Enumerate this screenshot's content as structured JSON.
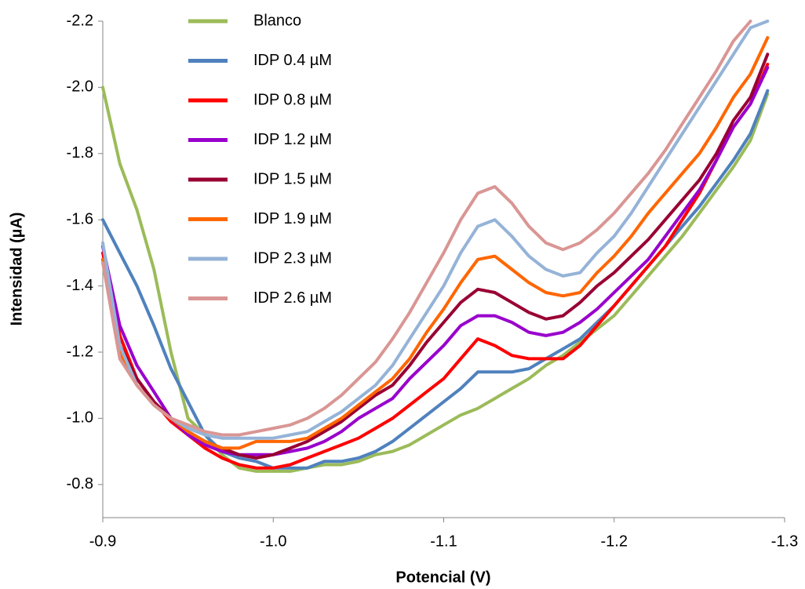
{
  "chart_data": {
    "type": "line",
    "x_label": "Potencial (V)",
    "y_label": "Intensidad (µA)",
    "x": [
      -0.9,
      -0.91,
      -0.92,
      -0.93,
      -0.94,
      -0.95,
      -0.96,
      -0.97,
      -0.98,
      -0.99,
      -1.0,
      -1.01,
      -1.02,
      -1.03,
      -1.04,
      -1.05,
      -1.06,
      -1.07,
      -1.08,
      -1.09,
      -1.1,
      -1.11,
      -1.12,
      -1.13,
      -1.14,
      -1.15,
      -1.16,
      -1.17,
      -1.18,
      -1.19,
      -1.2,
      -1.21,
      -1.22,
      -1.23,
      -1.24,
      -1.25,
      -1.26,
      -1.27,
      -1.28,
      -1.29
    ],
    "xlim": [
      -0.9,
      -1.3
    ],
    "xticks": [
      -0.9,
      {
        "value": -1.0,
        "label": "-1.0"
      },
      -1.1,
      -1.2,
      -1.3
    ],
    "ylim": [
      -0.7,
      -2.2
    ],
    "yticks": [
      -0.8,
      {
        "value": -1.0,
        "label": "-1.0"
      },
      -1.2,
      -1.4,
      -1.6,
      -1.8,
      {
        "value": -2.0,
        "label": "-2.0"
      },
      -2.2
    ],
    "grid": false,
    "legend": "top-left",
    "series": [
      {
        "name": "Blanco",
        "color": "#9bbb59",
        "values": [
          -2.0,
          -1.77,
          -1.63,
          -1.45,
          -1.2,
          -1.0,
          -0.95,
          -0.89,
          -0.85,
          -0.84,
          -0.84,
          -0.84,
          -0.85,
          -0.86,
          -0.86,
          -0.87,
          -0.89,
          -0.9,
          -0.92,
          -0.95,
          -0.98,
          -1.01,
          -1.03,
          -1.06,
          -1.09,
          -1.12,
          -1.16,
          -1.19,
          -1.23,
          -1.27,
          -1.31,
          -1.37,
          -1.43,
          -1.49,
          -1.55,
          -1.62,
          -1.69,
          -1.76,
          -1.84,
          -1.98
        ]
      },
      {
        "name": "IDP 0.4 µM",
        "color": "#4f81bd",
        "values": [
          -1.6,
          -1.5,
          -1.4,
          -1.28,
          -1.15,
          -1.05,
          -0.95,
          -0.9,
          -0.88,
          -0.87,
          -0.85,
          -0.85,
          -0.85,
          -0.87,
          -0.87,
          -0.88,
          -0.9,
          -0.93,
          -0.97,
          -1.01,
          -1.05,
          -1.09,
          -1.14,
          -1.14,
          -1.14,
          -1.15,
          -1.18,
          -1.21,
          -1.24,
          -1.29,
          -1.34,
          -1.4,
          -1.46,
          -1.52,
          -1.58,
          -1.64,
          -1.71,
          -1.78,
          -1.86,
          -1.99
        ]
      },
      {
        "name": "IDP 0.8 µM",
        "color": "#ff0000",
        "values": [
          -1.5,
          -1.25,
          -1.12,
          -1.05,
          -0.99,
          -0.95,
          -0.91,
          -0.88,
          -0.86,
          -0.85,
          -0.85,
          -0.86,
          -0.88,
          -0.9,
          -0.92,
          -0.94,
          -0.97,
          -1.0,
          -1.04,
          -1.08,
          -1.12,
          -1.18,
          -1.24,
          -1.22,
          -1.19,
          -1.18,
          -1.18,
          -1.18,
          -1.22,
          -1.28,
          -1.34,
          -1.4,
          -1.46,
          -1.52,
          -1.6,
          -1.68,
          -1.78,
          -1.88,
          -1.95,
          -2.07
        ]
      },
      {
        "name": "IDP 1.2 µM",
        "color": "#9900cc",
        "values": [
          -1.52,
          -1.28,
          -1.16,
          -1.08,
          -1.0,
          -0.95,
          -0.92,
          -0.9,
          -0.89,
          -0.89,
          -0.89,
          -0.9,
          -0.91,
          -0.93,
          -0.96,
          -1.0,
          -1.03,
          -1.06,
          -1.12,
          -1.17,
          -1.22,
          -1.28,
          -1.31,
          -1.31,
          -1.29,
          -1.26,
          -1.25,
          -1.26,
          -1.29,
          -1.33,
          -1.38,
          -1.43,
          -1.48,
          -1.55,
          -1.62,
          -1.69,
          -1.78,
          -1.88,
          -1.95,
          -2.06
        ]
      },
      {
        "name": "IDP 1.5 µM",
        "color": "#990033",
        "values": [
          -1.48,
          -1.22,
          -1.12,
          -1.05,
          -1.0,
          -0.96,
          -0.93,
          -0.91,
          -0.89,
          -0.88,
          -0.89,
          -0.91,
          -0.93,
          -0.96,
          -0.99,
          -1.03,
          -1.07,
          -1.1,
          -1.16,
          -1.23,
          -1.29,
          -1.35,
          -1.39,
          -1.38,
          -1.35,
          -1.32,
          -1.3,
          -1.31,
          -1.35,
          -1.4,
          -1.44,
          -1.49,
          -1.54,
          -1.6,
          -1.66,
          -1.72,
          -1.8,
          -1.9,
          -1.97,
          -2.1
        ]
      },
      {
        "name": "IDP 1.9 µM",
        "color": "#ff6600",
        "values": [
          -1.48,
          -1.2,
          -1.1,
          -1.04,
          -1.0,
          -0.96,
          -0.93,
          -0.91,
          -0.91,
          -0.93,
          -0.93,
          -0.93,
          -0.94,
          -0.97,
          -1.0,
          -1.04,
          -1.08,
          -1.12,
          -1.18,
          -1.26,
          -1.33,
          -1.41,
          -1.48,
          -1.49,
          -1.45,
          -1.41,
          -1.38,
          -1.37,
          -1.38,
          -1.44,
          -1.49,
          -1.55,
          -1.62,
          -1.68,
          -1.74,
          -1.8,
          -1.88,
          -1.97,
          -2.04,
          -2.15
        ]
      },
      {
        "name": "IDP 2.3 µM",
        "color": "#95b3d7",
        "values": [
          -1.53,
          -1.22,
          -1.1,
          -1.04,
          -1.0,
          -0.97,
          -0.95,
          -0.94,
          -0.94,
          -0.94,
          -0.94,
          -0.95,
          -0.96,
          -0.99,
          -1.02,
          -1.06,
          -1.1,
          -1.16,
          -1.24,
          -1.32,
          -1.4,
          -1.5,
          -1.58,
          -1.6,
          -1.55,
          -1.49,
          -1.45,
          -1.43,
          -1.44,
          -1.5,
          -1.55,
          -1.62,
          -1.7,
          -1.78,
          -1.86,
          -1.94,
          -2.02,
          -2.1,
          -2.18,
          -2.2
        ]
      },
      {
        "name": "IDP 2.6 µM",
        "color": "#d99694",
        "values": [
          -1.47,
          -1.18,
          -1.1,
          -1.04,
          -1.0,
          -0.98,
          -0.96,
          -0.95,
          -0.95,
          -0.96,
          -0.97,
          -0.98,
          -1.0,
          -1.03,
          -1.07,
          -1.12,
          -1.17,
          -1.24,
          -1.32,
          -1.41,
          -1.5,
          -1.6,
          -1.68,
          -1.7,
          -1.65,
          -1.58,
          -1.53,
          -1.51,
          -1.53,
          -1.57,
          -1.62,
          -1.68,
          -1.74,
          -1.81,
          -1.89,
          -1.97,
          -2.05,
          -2.14,
          -2.2,
          null
        ]
      }
    ]
  }
}
